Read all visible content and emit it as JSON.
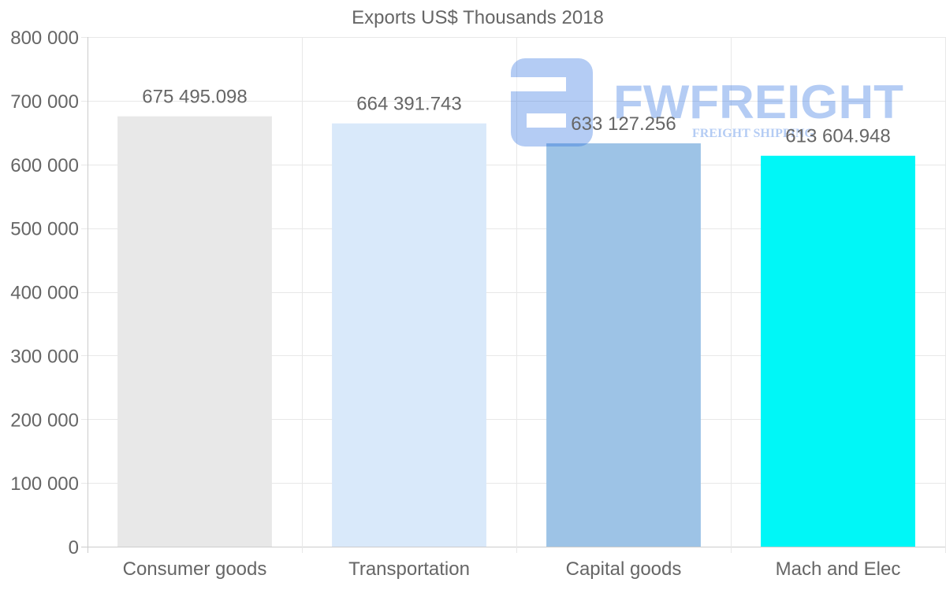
{
  "chart_data": {
    "type": "bar",
    "title": "Exports US$ Thousands 2018",
    "categories": [
      "Consumer goods",
      "Transportation",
      "Capital goods",
      "Mach and Elec"
    ],
    "values": [
      675495.098,
      664391.743,
      633127.256,
      613604.948
    ],
    "value_labels": [
      "675 495.098",
      "664 391.743",
      "633 127.256",
      "613 604.948"
    ],
    "colors": [
      "#e8e8e8",
      "#d9e9fa",
      "#9dc3e6",
      "#00f7f7"
    ],
    "ylim": [
      0,
      800000
    ],
    "yticks": [
      0,
      100000,
      200000,
      300000,
      400000,
      500000,
      600000,
      700000,
      800000
    ],
    "ytick_labels": [
      "0",
      "100 000",
      "200 000",
      "300 000",
      "400 000",
      "500 000",
      "600 000",
      "700 000",
      "800 000"
    ],
    "xlabel": "",
    "ylabel": "",
    "grid": true,
    "legend": "none"
  },
  "watermark": {
    "brand": "FWFREIGHT",
    "tagline": "FREIGHT SHIPPING"
  }
}
